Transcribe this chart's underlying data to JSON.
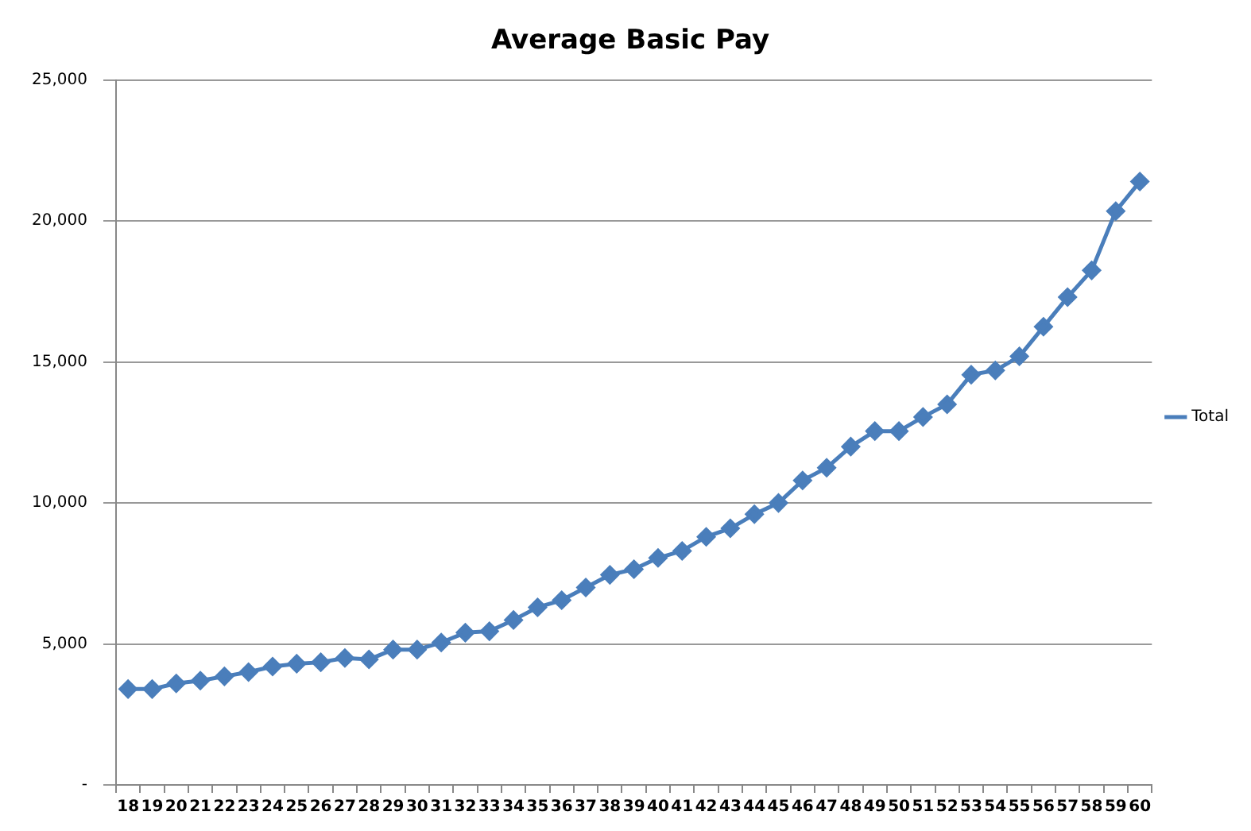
{
  "chart_data": {
    "type": "line",
    "title": "Average Basic Pay",
    "categories": [
      "18",
      "19",
      "20",
      "21",
      "22",
      "23",
      "24",
      "25",
      "26",
      "27",
      "28",
      "29",
      "30",
      "31",
      "32",
      "33",
      "34",
      "35",
      "36",
      "37",
      "38",
      "39",
      "40",
      "41",
      "42",
      "43",
      "44",
      "45",
      "46",
      "47",
      "48",
      "49",
      "50",
      "51",
      "52",
      "53",
      "54",
      "55",
      "56",
      "57",
      "58",
      "59",
      "60"
    ],
    "series": [
      {
        "name": "Total",
        "color": "#4a7ebb",
        "values": [
          3400,
          3400,
          3600,
          3700,
          3850,
          4000,
          4200,
          4300,
          4350,
          4500,
          4450,
          4800,
          4800,
          5050,
          5400,
          5450,
          5850,
          6300,
          6550,
          7000,
          7450,
          7650,
          8050,
          8300,
          8800,
          9100,
          9600,
          10000,
          10800,
          11250,
          12000,
          12550,
          12550,
          13050,
          13500,
          14550,
          14700,
          15200,
          16250,
          17300,
          18250,
          20350,
          21400
        ]
      }
    ],
    "ylim": [
      0,
      25000
    ],
    "yticks": [
      {
        "value": 0,
        "label": "-"
      },
      {
        "value": 5000,
        "label": "5,000"
      },
      {
        "value": 10000,
        "label": "10,000"
      },
      {
        "value": 15000,
        "label": "15,000"
      },
      {
        "value": 20000,
        "label": "20,000"
      },
      {
        "value": 25000,
        "label": "25,000"
      }
    ],
    "grid": "y",
    "legend": "right",
    "marker": "diamond",
    "line_style": "solid"
  }
}
